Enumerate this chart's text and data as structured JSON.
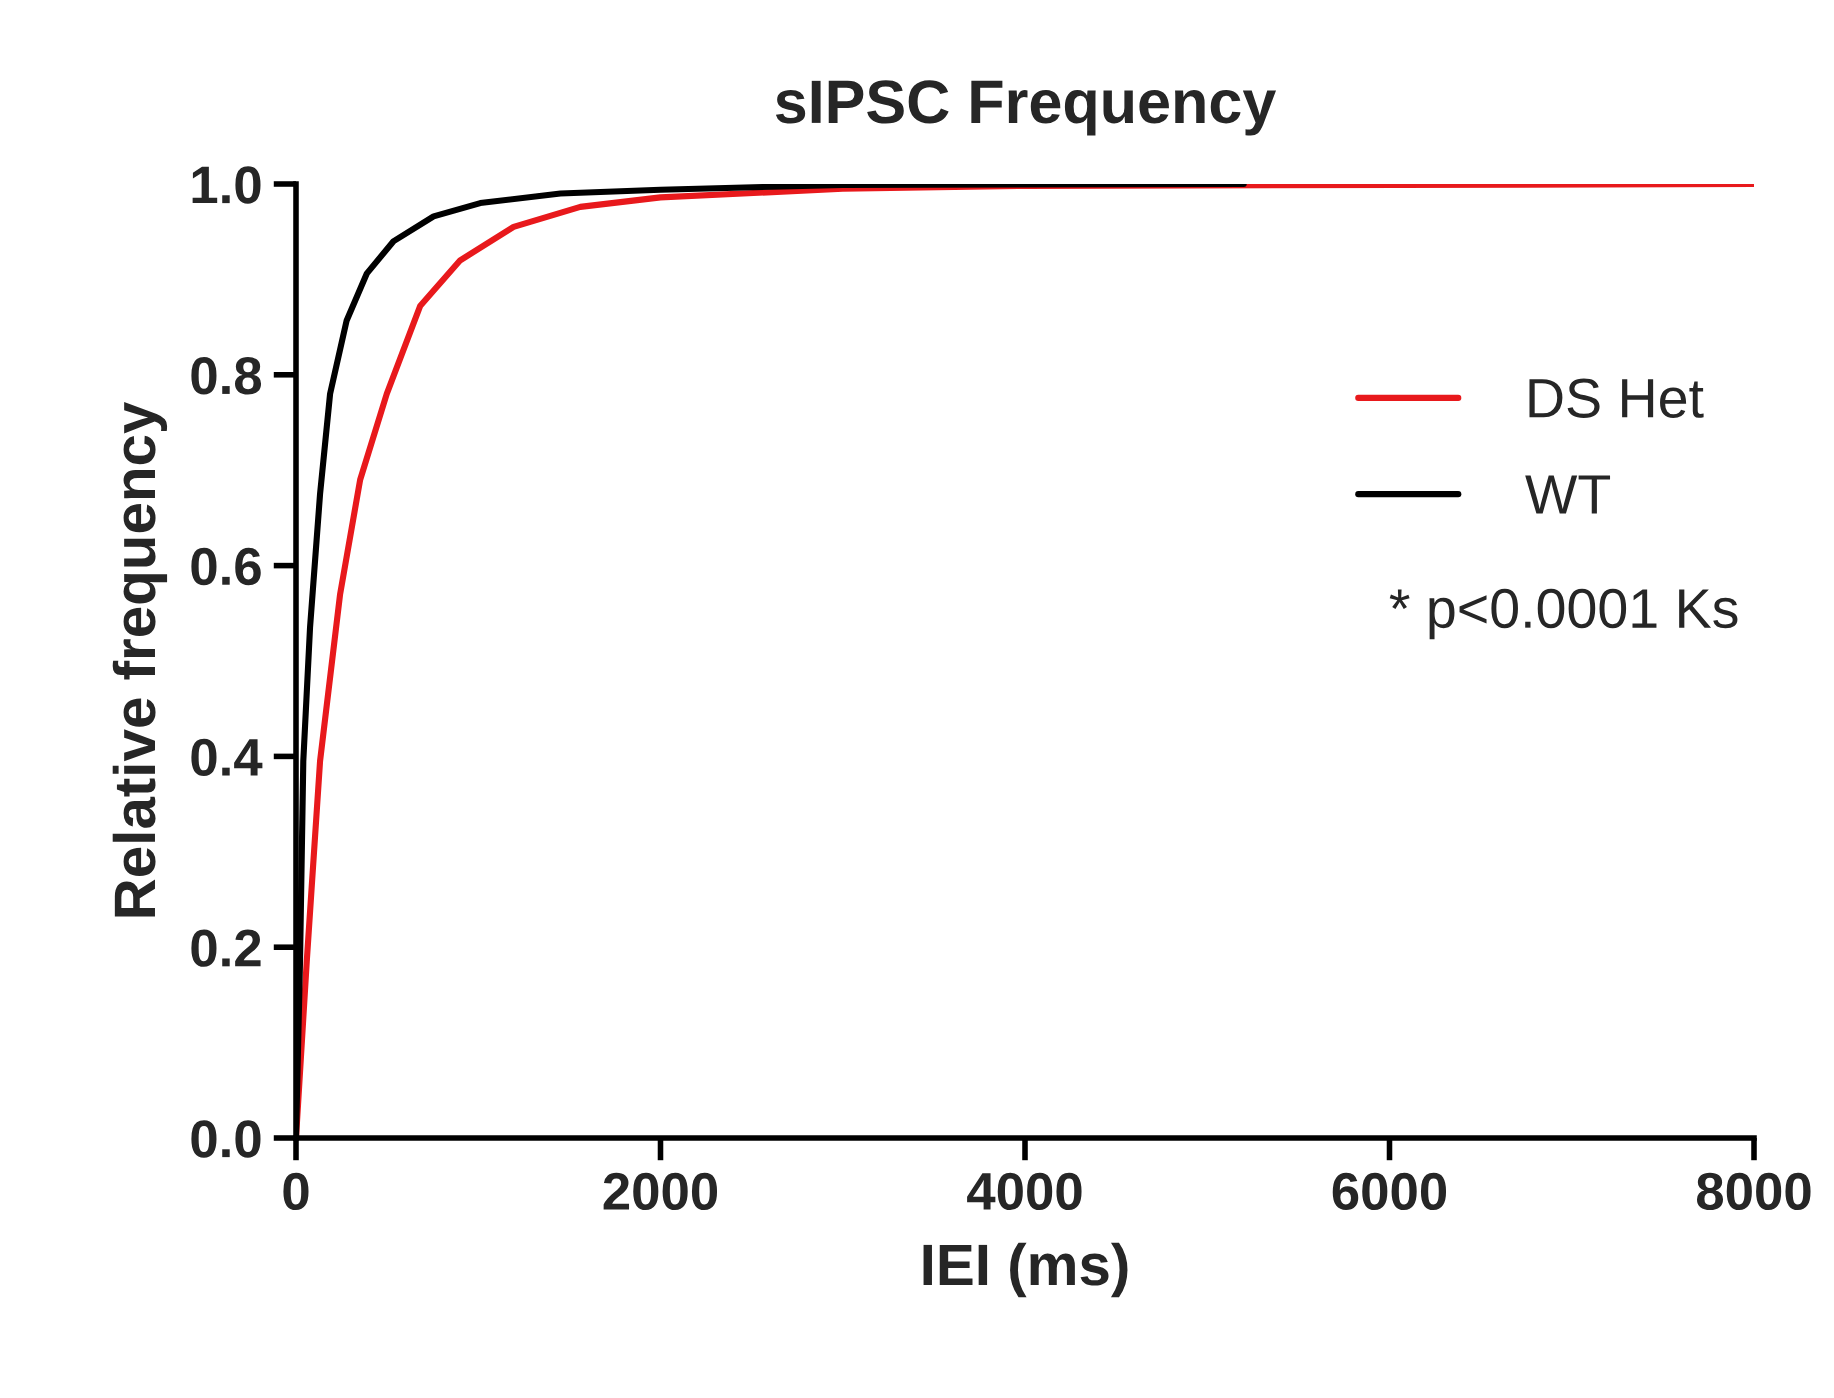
{
  "chart_data": {
    "type": "line",
    "title": "sIPSC Frequency",
    "xlabel": "IEI (ms)",
    "ylabel": "Relative frequency",
    "series": [
      {
        "name": "DS Het",
        "color": "#e8191c",
        "x": [
          0,
          59,
          132,
          242,
          352,
          498,
          681,
          901,
          1194,
          1560,
          2000,
          3000,
          4000,
          8000
        ],
        "values": [
          0,
          0.185,
          0.395,
          0.57,
          0.69,
          0.78,
          0.872,
          0.92,
          0.955,
          0.976,
          0.986,
          0.995,
          0.998,
          1.0
        ]
      },
      {
        "name": "WT",
        "color": "#000000",
        "x": [
          0,
          22,
          40,
          77,
          132,
          187,
          278,
          388,
          535,
          755,
          1011,
          1451,
          2000,
          3000,
          5200
        ],
        "values": [
          0,
          0.185,
          0.395,
          0.535,
          0.675,
          0.78,
          0.857,
          0.906,
          0.94,
          0.966,
          0.98,
          0.99,
          0.994,
          0.999,
          1.0
        ]
      }
    ],
    "annotations": [
      "* p<0.0001 Ks"
    ],
    "xlim": [
      0,
      8000
    ],
    "xticks": [
      0,
      2000,
      4000,
      6000,
      8000
    ],
    "ylim": [
      0.0,
      1.0
    ],
    "yticks": [
      {
        "value": 0,
        "label": "0.0"
      },
      {
        "value": 0.2,
        "label": "0.2"
      },
      {
        "value": 0.4,
        "label": "0.4"
      },
      {
        "value": 0.6,
        "label": "0.6"
      },
      {
        "value": 0.8,
        "label": "0.8"
      },
      {
        "value": 1.0,
        "label": "1.0"
      }
    ],
    "legend": "right",
    "grid": false,
    "marker": "none",
    "line_style": "solid"
  }
}
